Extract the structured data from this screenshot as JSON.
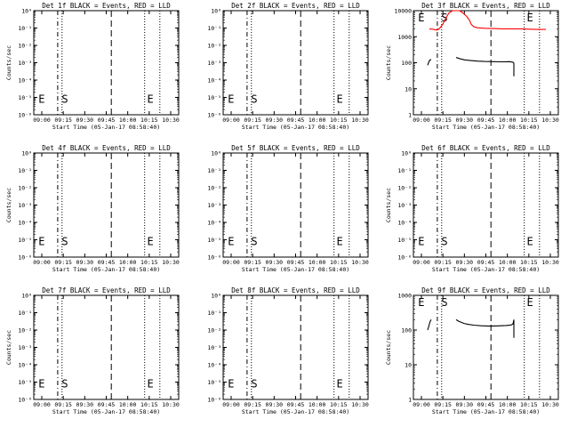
{
  "chart_data": [
    {
      "type": "line",
      "title": "Det 1f BLACK = Events, RED = LLD",
      "xlabel": "Start Time (05-Jan-17 08:58:40)",
      "ylabel": "Counts/sec",
      "x_ticks": [
        "09:00",
        "09:15",
        "09:30",
        "09:45",
        "10:00",
        "10:15",
        "10:30"
      ],
      "y_ticks": [
        "10⁰",
        "10⁻¹",
        "10⁻²",
        "10⁻³",
        "10⁻⁴",
        "10⁻⁵",
        "10⁻⁶"
      ],
      "y_log_decades": [
        0,
        -1,
        -2,
        -3,
        -4,
        -5,
        -6
      ],
      "markers": [
        "E",
        "S",
        "E"
      ],
      "series": []
    },
    {
      "type": "line",
      "title": "Det 2f BLACK = Events, RED = LLD",
      "xlabel": "Start Time (05-Jan-17 08:58:40)",
      "ylabel": "",
      "x_ticks": [
        "09:00",
        "09:15",
        "09:30",
        "09:45",
        "10:00",
        "10:15",
        "10:30"
      ],
      "y_ticks": [
        "10⁰",
        "10⁻¹",
        "10⁻²",
        "10⁻³",
        "10⁻⁴",
        "10⁻⁵",
        "10⁻⁶"
      ],
      "y_log_decades": [
        0,
        -1,
        -2,
        -3,
        -4,
        -5,
        -6
      ],
      "markers": [
        "E",
        "S",
        "E"
      ],
      "series": []
    },
    {
      "type": "line",
      "title": "Det 3f BLACK = Events, RED = LLD",
      "xlabel": "Start Time (05-Jan-17 08:58:40)",
      "ylabel": "Counts/sec",
      "x_ticks": [
        "09:00",
        "09:15",
        "09:30",
        "09:45",
        "10:00",
        "10:15",
        "10:30"
      ],
      "y_ticks": [
        "1",
        "10",
        "100",
        "1000",
        "10000"
      ],
      "y_log_decades": [
        0,
        1,
        2,
        3,
        4
      ],
      "markers": [
        "E",
        "S",
        "E"
      ],
      "series": [
        {
          "color": "#ff0000",
          "points": [
            [
              18,
              2000
            ],
            [
              23,
              1900
            ],
            [
              26,
              1800
            ],
            [
              28,
              1900
            ],
            [
              30,
              2200
            ],
            [
              33,
              3000
            ],
            [
              36,
              4800
            ],
            [
              40,
              8200
            ],
            [
              44,
              11000
            ],
            [
              48,
              11500
            ],
            [
              52,
              10000
            ],
            [
              56,
              8000
            ],
            [
              60,
              6000
            ],
            [
              63,
              4300
            ],
            [
              65,
              3000
            ],
            [
              68,
              2400
            ],
            [
              72,
              2200
            ],
            [
              80,
              2100
            ],
            [
              90,
              2050
            ],
            [
              100,
              2000
            ],
            [
              110,
              2000
            ],
            [
              120,
              2000
            ],
            [
              130,
              1950
            ],
            [
              140,
              1900
            ],
            [
              149,
              1900
            ]
          ]
        },
        {
          "color": "#000000",
          "points": [
            [
              16,
              80
            ],
            [
              17,
              100
            ],
            [
              18,
              120
            ],
            [
              19,
              130
            ],
            [
              20,
              130
            ]
          ]
        },
        {
          "color": "#000000",
          "points": [
            [
              48,
              160
            ],
            [
              50,
              150
            ],
            [
              53,
              140
            ],
            [
              57,
              130
            ],
            [
              61,
              125
            ],
            [
              66,
              120
            ],
            [
              72,
              115
            ],
            [
              80,
              112
            ],
            [
              90,
              110
            ],
            [
              100,
              108
            ],
            [
              108,
              110
            ],
            [
              112,
              105
            ],
            [
              113,
              95
            ],
            [
              113,
              30
            ]
          ]
        }
      ]
    },
    {
      "type": "line",
      "title": "Det 4f BLACK = Events, RED = LLD",
      "xlabel": "Start Time (05-Jan-17 08:58:40)",
      "ylabel": "Counts/sec",
      "x_ticks": [
        "09:00",
        "09:15",
        "09:30",
        "09:45",
        "10:00",
        "10:15",
        "10:30"
      ],
      "y_ticks": [
        "10⁰",
        "10⁻¹",
        "10⁻²",
        "10⁻³",
        "10⁻⁴",
        "10⁻⁵",
        "10⁻⁶"
      ],
      "y_log_decades": [
        0,
        -1,
        -2,
        -3,
        -4,
        -5,
        -6
      ],
      "markers": [
        "E",
        "S",
        "E"
      ],
      "series": []
    },
    {
      "type": "line",
      "title": "Det 5f BLACK = Events, RED = LLD",
      "xlabel": "Start Time (05-Jan-17 08:58:40)",
      "ylabel": "",
      "x_ticks": [
        "09:00",
        "09:15",
        "09:30",
        "09:45",
        "10:00",
        "10:15",
        "10:30"
      ],
      "y_ticks": [
        "10⁰",
        "10⁻¹",
        "10⁻²",
        "10⁻³",
        "10⁻⁴",
        "10⁻⁵",
        "10⁻⁶"
      ],
      "y_log_decades": [
        0,
        -1,
        -2,
        -3,
        -4,
        -5,
        -6
      ],
      "markers": [
        "E",
        "S",
        "E"
      ],
      "series": []
    },
    {
      "type": "line",
      "title": "Det 6f BLACK = Events, RED = LLD",
      "xlabel": "Start Time (05-Jan-17 08:58:40)",
      "ylabel": "Counts/sec",
      "x_ticks": [
        "09:00",
        "09:15",
        "09:30",
        "09:45",
        "10:00",
        "10:15",
        "10:30"
      ],
      "y_ticks": [
        "10⁰",
        "10⁻¹",
        "10⁻²",
        "10⁻³",
        "10⁻⁴",
        "10⁻⁵",
        "10⁻⁶"
      ],
      "y_log_decades": [
        0,
        -1,
        -2,
        -3,
        -4,
        -5,
        -6
      ],
      "markers": [
        "E",
        "S",
        "E"
      ],
      "series": []
    },
    {
      "type": "line",
      "title": "Det 7f BLACK = Events, RED = LLD",
      "xlabel": "Start Time (05-Jan-17 08:58:40)",
      "ylabel": "Counts/sec",
      "x_ticks": [
        "09:00",
        "09:15",
        "09:30",
        "09:45",
        "10:00",
        "10:15",
        "10:30"
      ],
      "y_ticks": [
        "10⁰",
        "10⁻¹",
        "10⁻²",
        "10⁻³",
        "10⁻⁴",
        "10⁻⁵",
        "10⁻⁶"
      ],
      "y_log_decades": [
        0,
        -1,
        -2,
        -3,
        -4,
        -5,
        -6
      ],
      "markers": [
        "E",
        "S",
        "E"
      ],
      "series": []
    },
    {
      "type": "line",
      "title": "Det 8f BLACK = Events, RED = LLD",
      "xlabel": "Start Time (05-Jan-17 08:58:40)",
      "ylabel": "",
      "x_ticks": [
        "09:00",
        "09:15",
        "09:30",
        "09:45",
        "10:00",
        "10:15",
        "10:30"
      ],
      "y_ticks": [
        "10⁰",
        "10⁻¹",
        "10⁻²",
        "10⁻³",
        "10⁻⁴",
        "10⁻⁵",
        "10⁻⁶"
      ],
      "y_log_decades": [
        0,
        -1,
        -2,
        -3,
        -4,
        -5,
        -6
      ],
      "markers": [
        "E",
        "S",
        "E"
      ],
      "series": []
    },
    {
      "type": "line",
      "title": "Det 9f BLACK = Events, RED = LLD",
      "xlabel": "Start Time (05-Jan-17 08:58:40)",
      "ylabel": "Counts/sec",
      "x_ticks": [
        "09:00",
        "09:15",
        "09:30",
        "09:45",
        "10:00",
        "10:15",
        "10:30"
      ],
      "y_ticks": [
        "1",
        "10",
        "100",
        "1000"
      ],
      "y_log_decades": [
        0,
        1,
        2,
        3
      ],
      "markers": [
        "E",
        "S",
        "E"
      ],
      "series": [
        {
          "color": "#000000",
          "points": [
            [
              16,
              100
            ],
            [
              17,
              120
            ],
            [
              18,
              150
            ],
            [
              19,
              180
            ],
            [
              20,
              200
            ]
          ]
        },
        {
          "color": "#000000",
          "points": [
            [
              48,
              200
            ],
            [
              50,
              185
            ],
            [
              53,
              170
            ],
            [
              57,
              155
            ],
            [
              62,
              145
            ],
            [
              68,
              138
            ],
            [
              76,
              133
            ],
            [
              86,
              130
            ],
            [
              96,
              132
            ],
            [
              104,
              135
            ],
            [
              110,
              140
            ],
            [
              112,
              150
            ],
            [
              113,
              200
            ],
            [
              113,
              60
            ]
          ]
        }
      ]
    }
  ]
}
